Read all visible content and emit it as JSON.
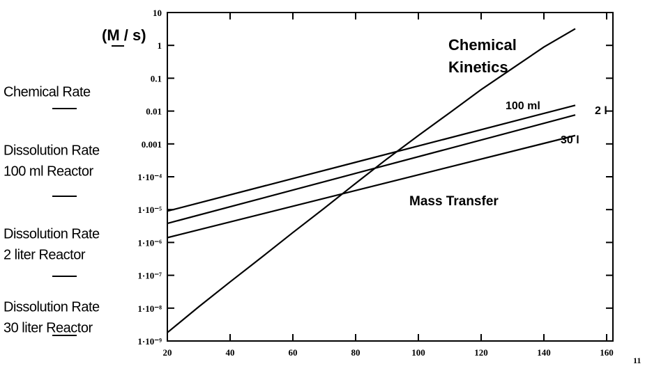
{
  "chart_data": {
    "type": "line",
    "ylabel": "(M / s)",
    "ylog": true,
    "xlim": [
      20,
      162
    ],
    "xticks": [
      20,
      40,
      60,
      80,
      100,
      120,
      140,
      160
    ],
    "ylim": [
      1e-09,
      10
    ],
    "yticks": [
      {
        "value": 1e-09,
        "label": "1·10⁻⁹"
      },
      {
        "value": 1e-08,
        "label": "1·10⁻⁸"
      },
      {
        "value": 1e-07,
        "label": "1·10⁻⁷"
      },
      {
        "value": 1e-06,
        "label": "1·10⁻⁶"
      },
      {
        "value": 1e-05,
        "label": "1·10⁻⁵"
      },
      {
        "value": 0.0001,
        "label": "1·10⁻⁴"
      },
      0.001,
      0.01,
      0.1,
      1,
      10
    ],
    "series": [
      {
        "color": "#000000",
        "x": [
          20,
          30,
          40,
          50,
          60,
          70,
          80,
          90,
          100,
          110,
          120,
          130,
          140,
          150
        ],
        "values": [
          1.8e-09,
          1.1e-08,
          6.3e-08,
          3.5e-07,
          2e-06,
          1.1e-05,
          6.3e-05,
          0.00035,
          0.0018,
          0.0089,
          0.045,
          0.2,
          0.89,
          3.2
        ]
      },
      {
        "color": "#000000",
        "x": [
          20,
          150
        ],
        "values": [
          9e-06,
          0.015
        ]
      },
      {
        "color": "#000000",
        "x": [
          20,
          150
        ],
        "values": [
          3.8e-06,
          0.0076
        ]
      },
      {
        "color": "#000000",
        "x": [
          20,
          150
        ],
        "values": [
          1.4e-06,
          0.0018
        ]
      }
    ],
    "legend": [
      [
        "Chemical Rate"
      ],
      [
        "Dissolution Rate",
        "100 ml Reactor"
      ],
      [
        "Dissolution Rate",
        "2 liter Reactor"
      ],
      [
        "Dissolution Rate",
        "30 liter Reactor"
      ]
    ],
    "annotations": [
      [
        "Chemical",
        "Kinetics"
      ],
      [
        "100 ml"
      ],
      [
        "2 l"
      ],
      [
        "30 l"
      ],
      [
        "Mass Transfer"
      ],
      [
        "11"
      ]
    ]
  }
}
